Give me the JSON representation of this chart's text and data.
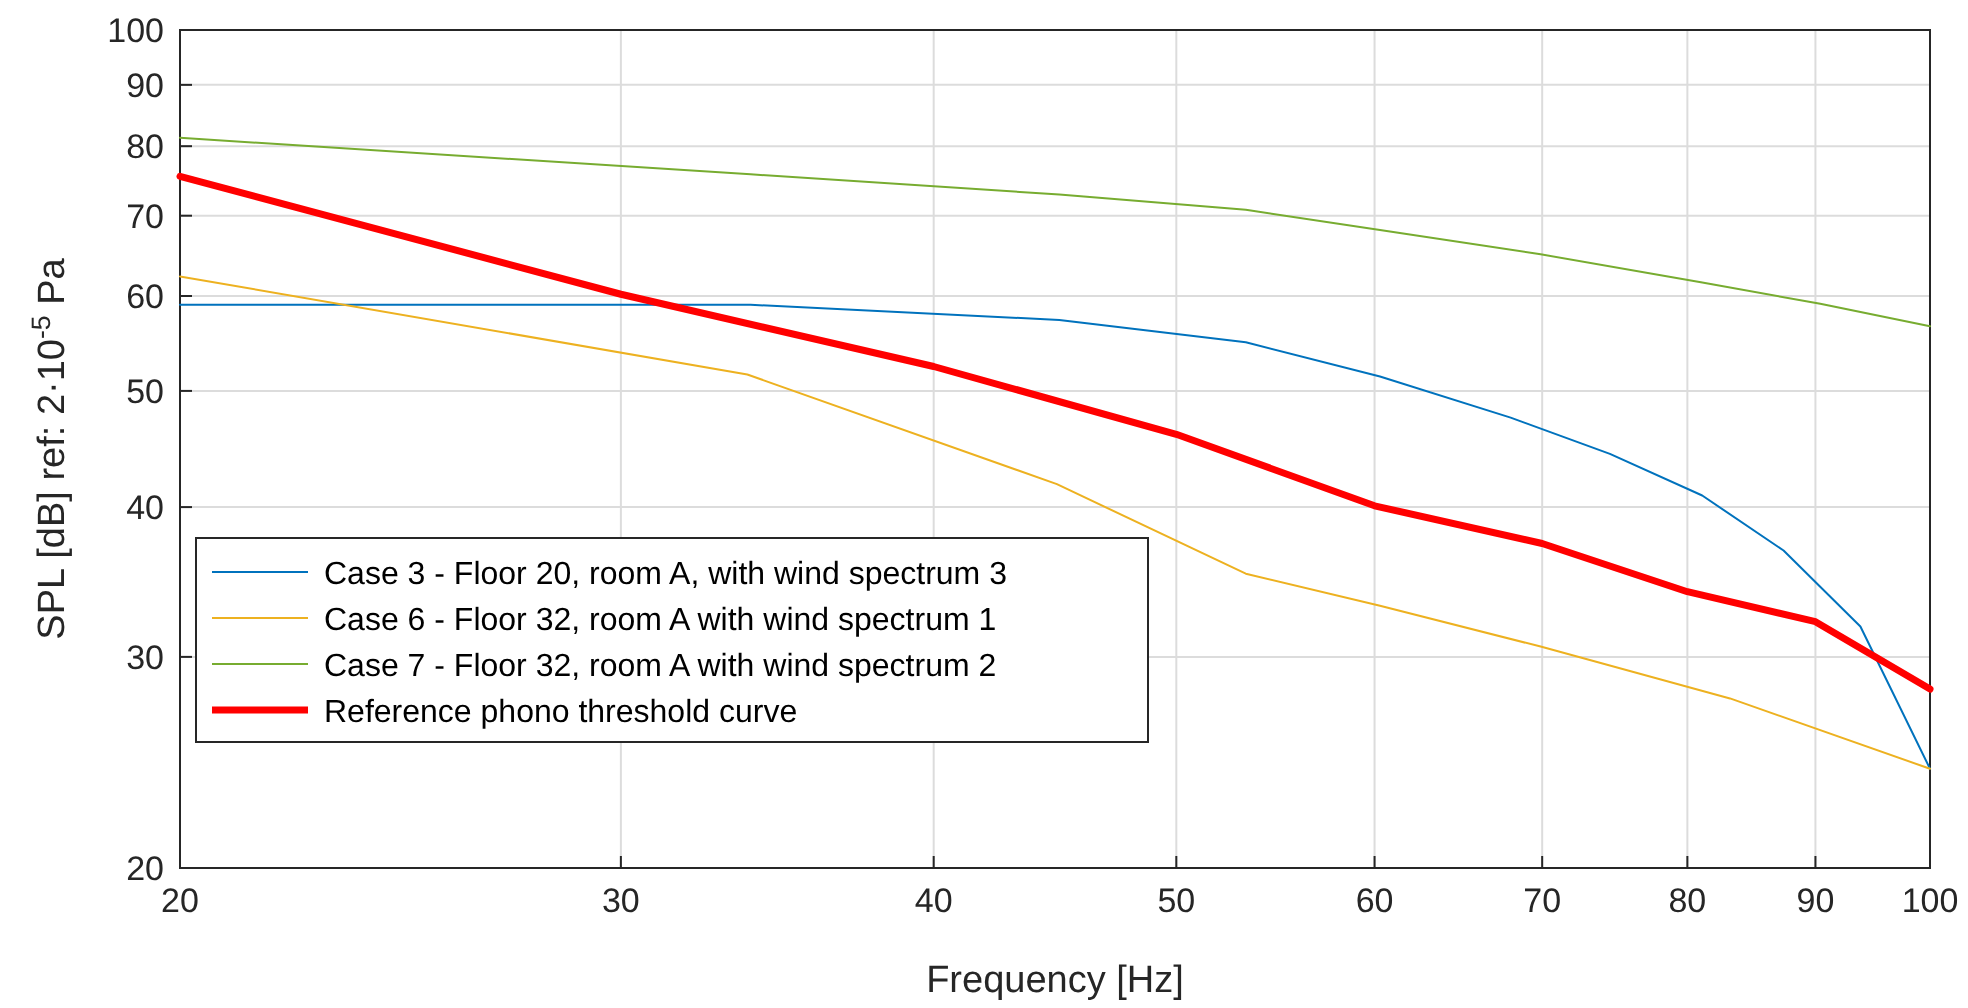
{
  "chart_data": {
    "type": "line",
    "xlabel": "Frequency [Hz]",
    "ylabel": "SPL [dB] ref: 2·10$^{-5}$ Pa",
    "log": "xy",
    "xlim": [
      20,
      100
    ],
    "ylim": [
      20,
      100
    ],
    "xticks": [
      20,
      30,
      40,
      50,
      60,
      70,
      80,
      90,
      100
    ],
    "yticks": [
      20,
      30,
      40,
      50,
      60,
      70,
      80,
      90,
      100
    ],
    "grid": true,
    "legend": "bottom left",
    "line_style": "solid",
    "series": [
      {
        "name": "Case 3 - Floor 20, room A, with wind spectrum 3",
        "color": "#0072bd",
        "x": [
          20,
          33.8,
          44.9,
          53.3,
          60.3,
          68,
          74.5,
          81.1,
          87.4,
          93.8,
          100
        ],
        "values": [
          59,
          59,
          57.3,
          54.9,
          51.4,
          47.5,
          44.3,
          40.9,
          36.8,
          31.8,
          24.2
        ]
      },
      {
        "name": "Case 6 - Floor 32, room A with wind spectrum 1",
        "color": "#edb120",
        "x": [
          20,
          33.7,
          44.8,
          53.3,
          60.3,
          69.9,
          83.2,
          100
        ],
        "values": [
          62.3,
          51.6,
          41.8,
          35.2,
          33.1,
          30.6,
          27.7,
          24.2
        ]
      },
      {
        "name": "Case 7 - Floor 32, room A with wind spectrum 2",
        "color": "#77ac30",
        "x": [
          20,
          33.8,
          44.9,
          53.3,
          60.3,
          69.9,
          81,
          90.4,
          100
        ],
        "values": [
          81.3,
          75.8,
          72.9,
          70.8,
          68.1,
          65,
          61.6,
          59.1,
          56.6
        ]
      },
      {
        "name": "Reference phono threshold curve",
        "color": "#ff0000",
        "x": [
          20,
          30,
          40,
          50,
          60,
          70,
          80,
          90,
          100
        ],
        "values": [
          75.5,
          60.2,
          52.4,
          46,
          40.1,
          37.3,
          34,
          32.1,
          28.2
        ]
      }
    ]
  }
}
